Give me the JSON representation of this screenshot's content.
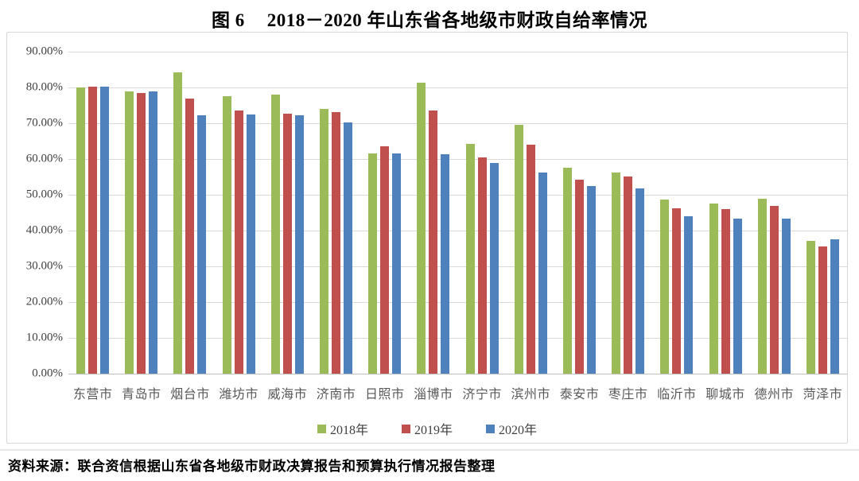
{
  "page": {
    "title_prefix": "图 6",
    "title_text": "2018－2020 年山东省各地级市财政自给率情况",
    "source": "资料来源：联合资信根据山东省各地级市财政决算报告和预算执行情况报告整理"
  },
  "chart_data": {
    "type": "bar",
    "title": "图 6 2018－2020 年山东省各地级市财政自给率情况",
    "xlabel": "",
    "ylabel": "财政自给率",
    "ylim": [
      0,
      90
    ],
    "grid": true,
    "legend_position": "bottom",
    "y_ticks": [
      {
        "value": 90,
        "label": "90.00%"
      },
      {
        "value": 80,
        "label": "80.00%"
      },
      {
        "value": 70,
        "label": "70.00%"
      },
      {
        "value": 60,
        "label": "60.00%"
      },
      {
        "value": 50,
        "label": "50.00%"
      },
      {
        "value": 40,
        "label": "40.00%"
      },
      {
        "value": 30,
        "label": "30.00%"
      },
      {
        "value": 20,
        "label": "20.00%"
      },
      {
        "value": 10,
        "label": "10.00%"
      },
      {
        "value": 0,
        "label": "0.00%"
      }
    ],
    "categories": [
      "东营市",
      "青岛市",
      "烟台市",
      "潍坊市",
      "威海市",
      "济南市",
      "日照市",
      "淄博市",
      "济宁市",
      "滨州市",
      "泰安市",
      "枣庄市",
      "临沂市",
      "聊城市",
      "德州市",
      "菏泽市"
    ],
    "series": [
      {
        "name": "2018年",
        "color": "#9BBB59",
        "values": [
          80.0,
          79.0,
          84.2,
          77.6,
          78.1,
          73.9,
          61.6,
          81.3,
          64.2,
          69.6,
          57.6,
          56.3,
          48.7,
          47.6,
          48.8,
          37.2
        ]
      },
      {
        "name": "2019年",
        "color": "#C0504D",
        "values": [
          80.3,
          78.5,
          76.8,
          73.5,
          72.7,
          73.1,
          63.6,
          73.6,
          60.5,
          64.0,
          54.2,
          55.1,
          46.2,
          45.9,
          47.0,
          35.6
        ]
      },
      {
        "name": "2020年",
        "color": "#4F81BD",
        "values": [
          80.2,
          78.9,
          72.2,
          72.4,
          72.2,
          70.3,
          61.6,
          61.4,
          58.9,
          56.3,
          52.5,
          51.8,
          44.0,
          43.4,
          43.4,
          37.6
        ]
      }
    ]
  }
}
